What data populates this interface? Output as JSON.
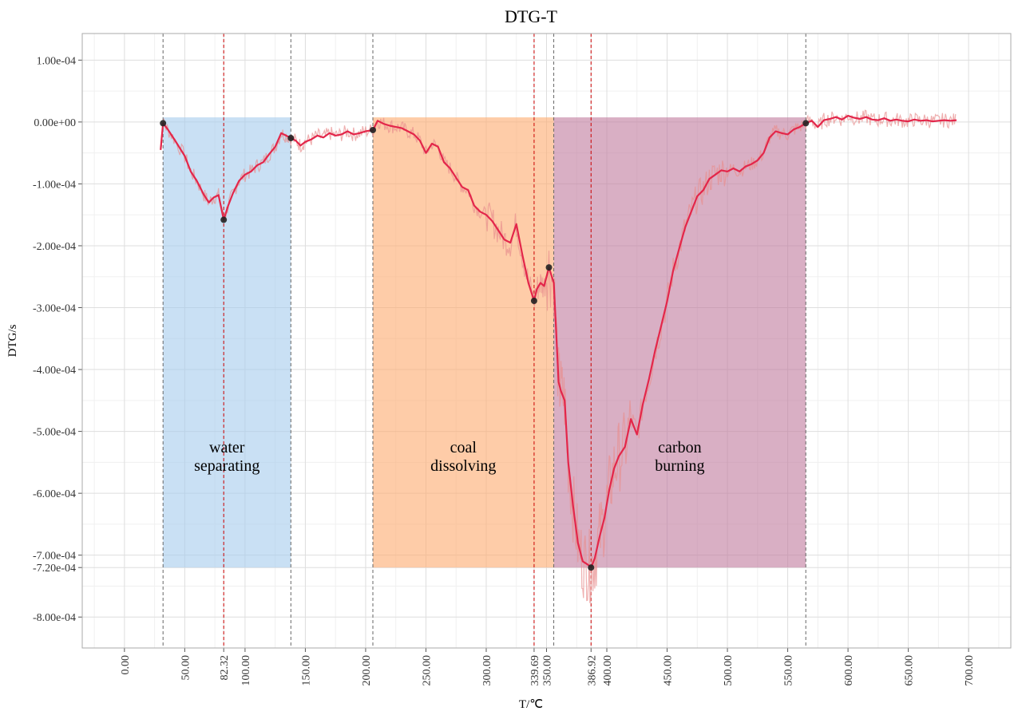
{
  "chart_data": {
    "type": "line",
    "title": "DTG-T",
    "xlabel": "T/℃",
    "ylabel": "DTG/s",
    "xlim": [
      -35,
      735
    ],
    "ylim": [
      -0.00085,
      0.000143
    ],
    "grid": true,
    "x_ticks": [
      0,
      50,
      82.32,
      100,
      150,
      200,
      250,
      300,
      339.69,
      350,
      386.92,
      400,
      450,
      500,
      550,
      600,
      650,
      700
    ],
    "x_tick_labels": [
      "0.00",
      "50.00",
      "82.32",
      "100.00",
      "150.00",
      "200.00",
      "250.00",
      "300.00",
      "339.69",
      "350.00",
      "386.92",
      "400.00",
      "450.00",
      "500.00",
      "550.00",
      "600.00",
      "650.00",
      "700.00"
    ],
    "y_ticks": [
      0.0001,
      0,
      -0.0001,
      -0.0002,
      -0.0003,
      -0.0004,
      -0.0005,
      -0.0006,
      -0.0007,
      -0.00072,
      -0.0008
    ],
    "y_tick_labels": [
      "1.00e-04",
      "0.00e+00",
      "-1.00e-04",
      "-2.00e-04",
      "-3.00e-04",
      "-4.00e-04",
      "-5.00e-04",
      "-6.00e-04",
      "-7.00e-04",
      "-7.20e-04",
      "-8.00e-04"
    ],
    "regions": [
      {
        "label_lines": [
          "water",
          "separating"
        ],
        "x0": 32,
        "x1": 138,
        "y0": -0.00072,
        "y1": 7.5e-06,
        "color": "#a8cdee"
      },
      {
        "label_lines": [
          "coal",
          "dissolving"
        ],
        "x0": 206,
        "x1": 356,
        "y0": -0.00072,
        "y1": 7.5e-06,
        "color": "#fdac72"
      },
      {
        "label_lines": [
          "carbon",
          "burning"
        ],
        "x0": 356,
        "x1": 565,
        "y0": -0.00072,
        "y1": 7.5e-06,
        "color": "#c17ea0"
      }
    ],
    "vlines": [
      {
        "x": 32,
        "color": "#666666"
      },
      {
        "x": 82.32,
        "color": "#cc0000"
      },
      {
        "x": 138,
        "color": "#666666"
      },
      {
        "x": 206,
        "color": "#666666"
      },
      {
        "x": 339.69,
        "color": "#cc0000"
      },
      {
        "x": 356,
        "color": "#666666"
      },
      {
        "x": 386.92,
        "color": "#cc0000"
      },
      {
        "x": 565,
        "color": "#666666"
      }
    ],
    "markers": [
      {
        "x": 32,
        "y": -2e-06
      },
      {
        "x": 82.32,
        "y": -0.000158
      },
      {
        "x": 138,
        "y": -2.6e-05
      },
      {
        "x": 206,
        "y": -1.3e-05
      },
      {
        "x": 339.69,
        "y": -0.000289
      },
      {
        "x": 352,
        "y": -0.000235
      },
      {
        "x": 386.92,
        "y": -0.00072
      },
      {
        "x": 565,
        "y": -2e-06
      }
    ],
    "series": [
      {
        "color": "#e3264a",
        "x": [
          30,
          32,
          36,
          42,
          50,
          55,
          60,
          66,
          70,
          74,
          78,
          82.32,
          86,
          90,
          95,
          100,
          105,
          110,
          115,
          120,
          125,
          130,
          134,
          138,
          142,
          146,
          150,
          155,
          160,
          165,
          170,
          175,
          180,
          185,
          190,
          195,
          200,
          206,
          210,
          215,
          220,
          225,
          230,
          235,
          240,
          245,
          250,
          255,
          260,
          265,
          270,
          275,
          280,
          285,
          290,
          295,
          300,
          305,
          310,
          315,
          320,
          325,
          330,
          335,
          339.69,
          342,
          345,
          348,
          352,
          356,
          360,
          362,
          365,
          368,
          372,
          376,
          380,
          384,
          386.92,
          390,
          394,
          398,
          402,
          406,
          410,
          415,
          420,
          425,
          430,
          435,
          440,
          445,
          450,
          455,
          460,
          465,
          470,
          475,
          480,
          485,
          490,
          495,
          500,
          505,
          510,
          515,
          520,
          525,
          530,
          535,
          540,
          545,
          550,
          555,
          560,
          565,
          570,
          575,
          580,
          585,
          590,
          595,
          600,
          605,
          610,
          615,
          620,
          625,
          630,
          635,
          640,
          645,
          650,
          655,
          660,
          665,
          670,
          675,
          680,
          685,
          690
        ],
        "y": [
          -4.5e-05,
          -2e-06,
          -1.2e-05,
          -3e-05,
          -5.5e-05,
          -8e-05,
          -9.5e-05,
          -0.000118,
          -0.00013,
          -0.000122,
          -0.000118,
          -0.000158,
          -0.000135,
          -0.000115,
          -9.5e-05,
          -8.5e-05,
          -8e-05,
          -7e-05,
          -6.5e-05,
          -5.2e-05,
          -4e-05,
          -1.8e-05,
          -2.2e-05,
          -2.6e-05,
          -3e-05,
          -3.8e-05,
          -3.2e-05,
          -2.8e-05,
          -2.2e-05,
          -2.5e-05,
          -1.8e-05,
          -2.2e-05,
          -2e-05,
          -1.5e-05,
          -2e-05,
          -1.8e-05,
          -1.5e-05,
          -1.3e-05,
          2e-06,
          -3e-06,
          -6e-06,
          -8e-06,
          -1e-05,
          -1.5e-05,
          -2e-05,
          -3e-05,
          -5e-05,
          -3.5e-05,
          -4e-05,
          -6.5e-05,
          -7.5e-05,
          -9e-05,
          -0.000105,
          -0.00011,
          -0.000135,
          -0.000145,
          -0.00015,
          -0.00016,
          -0.000175,
          -0.00019,
          -0.000195,
          -0.000165,
          -0.000215,
          -0.00026,
          -0.000289,
          -0.00027,
          -0.00026,
          -0.000265,
          -0.000235,
          -0.00026,
          -0.00042,
          -0.000435,
          -0.00045,
          -0.00055,
          -0.00062,
          -0.00068,
          -0.00071,
          -0.000715,
          -0.00072,
          -0.000705,
          -0.00067,
          -0.00064,
          -0.000595,
          -0.00056,
          -0.00054,
          -0.000525,
          -0.00048,
          -0.000505,
          -0.000455,
          -0.000415,
          -0.00037,
          -0.00033,
          -0.00029,
          -0.00024,
          -0.000205,
          -0.00017,
          -0.000145,
          -0.00012,
          -0.00011,
          -9.2e-05,
          -8.5e-05,
          -7.8e-05,
          -8e-05,
          -7.5e-05,
          -8e-05,
          -7.2e-05,
          -6.8e-05,
          -6.2e-05,
          -5e-05,
          -2.5e-05,
          -1.5e-05,
          -1.8e-05,
          -2e-05,
          -1.2e-05,
          -8e-06,
          -2e-06,
          2e-06,
          -8e-06,
          3e-06,
          5e-06,
          8e-06,
          4e-06,
          1e-05,
          7e-06,
          5e-06,
          8e-06,
          4e-06,
          3e-06,
          6e-06,
          2e-06,
          4e-06,
          2e-06,
          1e-06,
          4e-06,
          2e-06,
          3e-06,
          1e-06,
          2e-06,
          3e-06,
          2e-06,
          3e-06
        ]
      }
    ]
  }
}
